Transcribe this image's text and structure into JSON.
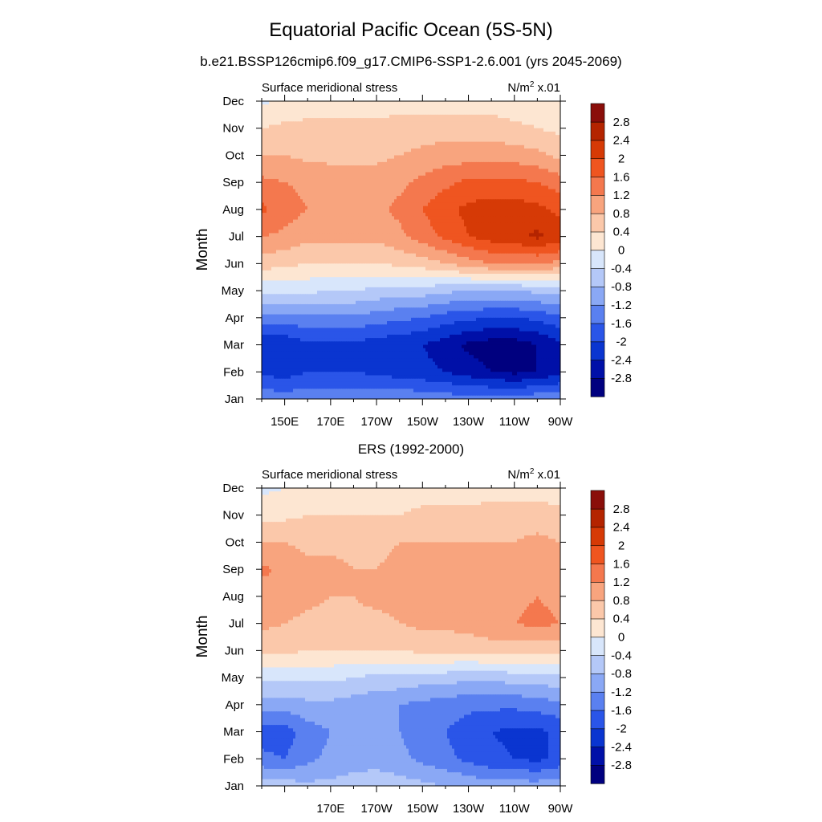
{
  "header": {
    "title": "Equatorial Pacific Ocean (5S-5N)"
  },
  "colors": {
    "levels": [
      "#00007f",
      "#0010a8",
      "#0a35d0",
      "#2a55e8",
      "#5a80f0",
      "#8aa8f5",
      "#b4c8f8",
      "#d8e6fb",
      "#fde6d2",
      "#fbc8aa",
      "#f8a47e",
      "#f4784e",
      "#ef5520",
      "#d63a06",
      "#b42400",
      "#8a0e0a"
    ],
    "axis": "#000000",
    "background": "#ffffff"
  },
  "chart_data": [
    {
      "type": "heatmap",
      "title": "b.e21.BSSP126cmip6.f09_g17.CMIP6-SSP1-2.6.001 (yrs 2045-2069)",
      "left_label": "Surface meridional stress",
      "units_prefix": "N/m",
      "units_sup": "2",
      "units_suffix": " x.01",
      "ylabel": "Month",
      "xlabel": "",
      "x_tick_labels": [
        "150E",
        "170E",
        "170W",
        "150W",
        "130W",
        "110W",
        "90W"
      ],
      "y_tick_labels": [
        "Jan",
        "Feb",
        "Mar",
        "Apr",
        "May",
        "Jun",
        "Jul",
        "Aug",
        "Sep",
        "Oct",
        "Nov",
        "Dec"
      ],
      "colorbar_labels": [
        "2.8",
        "2.4",
        "2",
        "1.6",
        "1.2",
        "0.8",
        "0.4",
        "0",
        "-0.4",
        "-0.8",
        "-1.2",
        "-1.6",
        "-2",
        "-2.4",
        "-2.8"
      ],
      "levels": [
        -2.8,
        -2.4,
        -2,
        -1.6,
        -1.2,
        -0.8,
        -0.4,
        0,
        0.4,
        0.8,
        1.2,
        1.6,
        2,
        2.4,
        2.8
      ],
      "xlim": [
        140,
        270
      ],
      "lon": [
        140,
        150,
        160,
        170,
        180,
        190,
        200,
        210,
        220,
        230,
        240,
        250,
        260,
        270
      ],
      "months": [
        "Jan",
        "Feb",
        "Mar",
        "Apr",
        "May",
        "Jun",
        "Jul",
        "Aug",
        "Sep",
        "Oct",
        "Nov",
        "Dec"
      ],
      "values": [
        [
          -1.3,
          -1.4,
          -1.3,
          -1.3,
          -1.3,
          -1.3,
          -1.3,
          -1.3,
          -1.4,
          -1.4,
          -1.4,
          -1.4,
          -1.3,
          -1.3
        ],
        [
          -2.1,
          -2.2,
          -2.0,
          -2.0,
          -2.0,
          -2.1,
          -2.2,
          -2.3,
          -2.4,
          -2.6,
          -2.8,
          -2.9,
          -2.8,
          -2.5
        ],
        [
          -2.3,
          -2.3,
          -2.1,
          -2.1,
          -2.1,
          -2.2,
          -2.3,
          -2.4,
          -2.6,
          -2.9,
          -3.0,
          -3.0,
          -2.8,
          -2.5
        ],
        [
          -1.4,
          -1.4,
          -1.3,
          -1.3,
          -1.3,
          -1.4,
          -1.5,
          -1.6,
          -1.8,
          -1.9,
          -2.0,
          -2.0,
          -1.9,
          -1.7
        ],
        [
          -0.3,
          -0.3,
          -0.3,
          -0.4,
          -0.4,
          -0.5,
          -0.6,
          -0.6,
          -0.7,
          -0.8,
          -0.8,
          -0.8,
          -0.7,
          -0.6
        ],
        [
          0.6,
          0.5,
          0.4,
          0.4,
          0.4,
          0.4,
          0.5,
          0.6,
          0.8,
          1.0,
          1.2,
          1.2,
          1.2,
          1.1
        ],
        [
          1.2,
          1.1,
          0.9,
          0.9,
          0.9,
          0.9,
          1.1,
          1.4,
          1.7,
          2.0,
          2.2,
          2.3,
          2.5,
          2.2
        ],
        [
          1.7,
          1.4,
          1.2,
          1.1,
          1.1,
          1.1,
          1.3,
          1.6,
          1.9,
          2.1,
          2.2,
          2.2,
          2.1,
          1.9
        ],
        [
          1.3,
          1.2,
          1.1,
          1.0,
          1.0,
          1.0,
          1.1,
          1.3,
          1.5,
          1.7,
          1.7,
          1.7,
          1.6,
          1.4
        ],
        [
          0.8,
          0.8,
          0.7,
          0.7,
          0.7,
          0.7,
          0.8,
          0.9,
          1.0,
          1.0,
          1.0,
          1.0,
          0.9,
          0.7
        ],
        [
          0.4,
          0.5,
          0.5,
          0.5,
          0.5,
          0.5,
          0.6,
          0.6,
          0.6,
          0.6,
          0.6,
          0.5,
          0.4,
          0.3
        ],
        [
          -0.1,
          0.1,
          0.2,
          0.2,
          0.2,
          0.2,
          0.2,
          0.2,
          0.2,
          0.2,
          0.2,
          0.1,
          0.1,
          0.0
        ]
      ]
    },
    {
      "type": "heatmap",
      "title": "ERS (1992-2000)",
      "left_label": "Surface meridional stress",
      "units_prefix": "N/m",
      "units_sup": "2",
      "units_suffix": " x.01",
      "ylabel": "Month",
      "xlabel": "",
      "x_tick_labels": [
        "170E",
        "170W",
        "150W",
        "130W",
        "110W",
        "90W"
      ],
      "y_tick_labels": [
        "Jan",
        "Feb",
        "Mar",
        "Apr",
        "May",
        "Jun",
        "Jul",
        "Aug",
        "Sep",
        "Oct",
        "Nov",
        "Dec"
      ],
      "colorbar_labels": [
        "2.8",
        "2.4",
        "2",
        "1.6",
        "1.2",
        "0.8",
        "0.4",
        "0",
        "-0.4",
        "-0.8",
        "-1.2",
        "-1.6",
        "-2",
        "-2.4",
        "-2.8"
      ],
      "levels": [
        -2.8,
        -2.4,
        -2,
        -1.6,
        -1.2,
        -0.8,
        -0.4,
        0,
        0.4,
        0.8,
        1.2,
        1.6,
        2,
        2.4,
        2.8
      ],
      "xlim": [
        140,
        270
      ],
      "lon": [
        140,
        150,
        160,
        170,
        180,
        190,
        200,
        210,
        220,
        230,
        240,
        250,
        260,
        270
      ],
      "months": [
        "Jan",
        "Feb",
        "Mar",
        "Apr",
        "May",
        "Jun",
        "Jul",
        "Aug",
        "Sep",
        "Oct",
        "Nov",
        "Dec"
      ],
      "values": [
        [
          -0.5,
          -0.6,
          -0.7,
          -0.7,
          -0.6,
          -0.5,
          -0.6,
          -0.7,
          -0.8,
          -0.9,
          -1.0,
          -1.0,
          -1.0,
          -0.9
        ],
        [
          -1.5,
          -1.6,
          -1.3,
          -1.1,
          -1.0,
          -1.0,
          -1.1,
          -1.3,
          -1.5,
          -1.7,
          -1.9,
          -2.0,
          -2.1,
          -1.9
        ],
        [
          -1.8,
          -1.8,
          -1.4,
          -1.2,
          -1.1,
          -1.1,
          -1.2,
          -1.4,
          -1.6,
          -1.8,
          -2.0,
          -2.1,
          -2.1,
          -1.9
        ],
        [
          -1.0,
          -1.0,
          -0.9,
          -0.9,
          -1.0,
          -1.1,
          -1.2,
          -1.3,
          -1.4,
          -1.5,
          -1.5,
          -1.5,
          -1.4,
          -1.3
        ],
        [
          -0.3,
          -0.3,
          -0.3,
          -0.3,
          -0.4,
          -0.5,
          -0.5,
          -0.6,
          -0.6,
          -0.7,
          -0.7,
          -0.6,
          -0.6,
          -0.5
        ],
        [
          0.5,
          0.5,
          0.4,
          0.4,
          0.4,
          0.4,
          0.4,
          0.5,
          0.5,
          0.5,
          0.6,
          0.6,
          0.5,
          0.5
        ],
        [
          0.9,
          0.8,
          0.7,
          0.7,
          0.7,
          0.7,
          0.8,
          0.9,
          0.9,
          1.0,
          1.1,
          1.2,
          1.3,
          1.2
        ],
        [
          1.0,
          1.0,
          0.9,
          0.8,
          0.8,
          0.9,
          0.9,
          0.9,
          0.9,
          0.9,
          1.0,
          1.1,
          1.2,
          1.1
        ],
        [
          1.3,
          1.1,
          0.9,
          0.9,
          0.8,
          0.8,
          0.9,
          0.9,
          0.9,
          0.9,
          0.9,
          1.0,
          1.1,
          1.0
        ],
        [
          0.8,
          0.8,
          0.7,
          0.7,
          0.7,
          0.7,
          0.8,
          0.8,
          0.8,
          0.8,
          0.8,
          0.8,
          0.9,
          0.8
        ],
        [
          0.3,
          0.3,
          0.4,
          0.4,
          0.4,
          0.4,
          0.4,
          0.5,
          0.5,
          0.5,
          0.6,
          0.6,
          0.6,
          0.5
        ],
        [
          -0.1,
          0.0,
          0.1,
          0.1,
          0.1,
          0.1,
          0.2,
          0.2,
          0.2,
          0.2,
          0.2,
          0.2,
          0.2,
          0.2
        ]
      ]
    }
  ]
}
